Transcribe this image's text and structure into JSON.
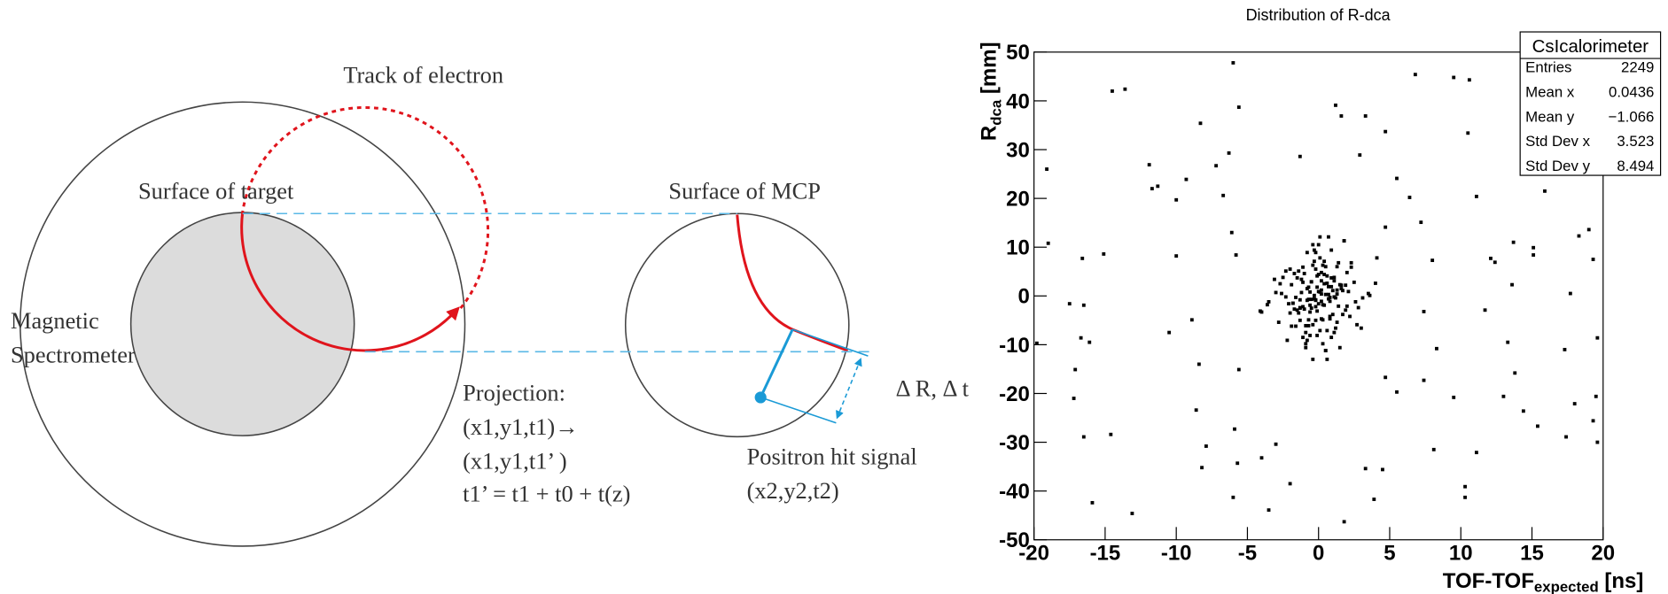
{
  "diagram": {
    "track_label": "Track of electron",
    "target_label": "Surface of target",
    "mcp_label": "Surface of MCP",
    "spectrometer_label": [
      "Magnetic",
      "Spectrometer"
    ],
    "projection_lines": [
      "Projection:",
      "(x1,y1,t1)→",
      "(x1,y1,t1’ )",
      "t1’ = t1 + t0 + t(z)"
    ],
    "delta_label": "Δ R, Δ t",
    "positron_lines": [
      "Positron hit signal",
      "(x2,y2,t2)"
    ]
  },
  "stats_box": {
    "title": "CsIcalorimeter",
    "rows": [
      {
        "label": "Entries",
        "value": "2249"
      },
      {
        "label": "Mean x",
        "value": "0.0436"
      },
      {
        "label": "Mean y",
        "value": "−1.066"
      },
      {
        "label": "Std Dev x",
        "value": "3.523"
      },
      {
        "label": "Std Dev y",
        "value": "8.494"
      }
    ]
  },
  "chart_data": {
    "type": "scatter",
    "title": "Distribution of R-dca",
    "x_label": {
      "text": "TOF-TOF",
      "subscript": "expected",
      "unit": " [ns]"
    },
    "y_label": {
      "text": "R",
      "subscript": "dca",
      "unit": " [mm]"
    },
    "color": "#000000",
    "xlim": [
      -20,
      20
    ],
    "xticks": [
      -20,
      -15,
      -10,
      -5,
      0,
      5,
      10,
      15,
      20
    ],
    "ylim": [
      -50,
      50
    ],
    "yticks": [
      -50,
      -40,
      -30,
      -20,
      -10,
      0,
      10,
      20,
      30,
      40,
      50
    ],
    "grid": false,
    "x": [
      -14.5,
      -13.6,
      -11.9,
      -11.7,
      -11.3,
      -16.6,
      -15.1,
      -16.5,
      -17.5,
      -16.7,
      -16.1,
      -17.1,
      -17.2,
      -16.5,
      -14.6,
      -15.9,
      -13.1,
      -19,
      -19.8,
      -19.1,
      -10.5,
      -10,
      -8.9,
      -8.4,
      -7.9,
      -8.2,
      -8.6,
      -10,
      -9.3,
      -8.3,
      -7.2,
      -6.7,
      -6.3,
      -5.6,
      -6,
      -6.1,
      -5.8,
      -5.6,
      -5.9,
      -5.7,
      -6,
      -4,
      -3,
      -1.3,
      -2,
      1.2,
      1.6,
      3.3,
      2.9,
      4.7,
      5.5,
      6.4,
      7.2,
      4.7,
      4.7,
      5.5,
      4.5,
      3.3,
      3.9,
      1.8,
      7.4,
      7.4,
      6.8,
      8,
      8.3,
      9.5,
      8.1,
      10.3,
      10.3,
      10.5,
      9.5,
      10.6,
      11.1,
      12.4,
      12.1,
      11.7,
      11.1,
      13,
      13.7,
      13.6,
      15.1,
      15.1,
      13.3,
      13.8,
      14.4,
      15.4,
      17.4,
      18,
      17.3,
      17.7,
      18.3,
      19,
      19.3,
      19.6,
      19.5,
      19.6,
      19.3,
      15.9,
      -3.5,
      0.2,
      -0.5,
      1.1,
      -1.3,
      0.8,
      -0.2,
      0.5,
      -0.9,
      1.6,
      -1.8,
      0.1,
      -0.6,
      2.1,
      -2.3,
      0.9,
      -0.1,
      0.4,
      -1.1,
      1.3,
      -0.4,
      0.7,
      -0.8,
      1.9,
      -1.5,
      0.3,
      -0.3,
      2.6,
      -2.7,
      0.0,
      1.0,
      -1.0,
      0.6,
      -0.7,
      1.4,
      -1.4,
      0.2,
      -0.2,
      3.1,
      -3.0,
      0.5,
      -0.5,
      1.2,
      -1.2,
      0.8,
      -0.8,
      2.3,
      -2.0,
      0.1,
      -0.1,
      1.7,
      -1.7,
      0.4,
      -0.4,
      3.5,
      -3.6,
      0.9,
      -0.9,
      1.5,
      -1.6,
      0.3,
      -0.3,
      2.8,
      -2.5,
      0.6,
      -0.6,
      1.1,
      -1.1,
      0.0,
      4.0,
      -4.1,
      1.8,
      -1.9,
      0.7,
      -0.7,
      2.0,
      -2.2,
      0.2,
      -0.2,
      1.3,
      -1.3,
      -0.2,
      0.5,
      -1.1,
      1.3,
      -0.8,
      0.2,
      -0.5,
      0.9,
      -1.6,
      1.8,
      -0.1,
      0.6,
      -2.1,
      2.3,
      -0.9,
      0.1,
      -0.4,
      1.1,
      -1.3,
      0.4,
      -0.7,
      0.8,
      -1.9,
      1.5,
      -0.3,
      0.3,
      -2.6,
      2.7,
      0.0,
      -1.0,
      1.0,
      -0.6,
      0.7,
      -1.4,
      1.4,
      -0.2,
      0.2,
      -3.1,
      3.0,
      -0.5,
      0.5,
      -1.2,
      1.2,
      -0.8,
      0.8,
      -2.3,
      2.0,
      -0.1,
      0.1,
      -1.7,
      1.7,
      -0.4,
      0.4,
      -3.5,
      3.6,
      -0.9,
      0.9,
      -1.5,
      1.6,
      -0.3,
      0.3,
      -2.8,
      2.5,
      -0.6,
      0.6,
      -1.1,
      1.1,
      0.0,
      -4.0,
      4.1,
      -1.8,
      1.9,
      -0.7,
      0.7,
      -2.0,
      2.2,
      -0.2,
      0.2,
      -1.3,
      1.3
    ],
    "y": [
      42,
      42.4,
      26.9,
      22,
      22.5,
      7.7,
      8.6,
      -1.9,
      -1.6,
      -8.6,
      -9.5,
      -15.1,
      -21,
      -28.9,
      -28.4,
      -42.4,
      -44.6,
      10.8,
      -9.7,
      26,
      -7.5,
      8.2,
      -4.9,
      -14,
      -30.8,
      -35.2,
      -23.4,
      19.7,
      23.9,
      35.4,
      26.7,
      20.6,
      29.3,
      38.7,
      47.8,
      13,
      8.4,
      -15.1,
      -27.3,
      -34.3,
      -41.3,
      -33.2,
      -30.4,
      28.6,
      -38.5,
      39.1,
      36.9,
      36.9,
      28.9,
      33.7,
      24.1,
      20.2,
      15.1,
      14.1,
      -16.7,
      -19.7,
      -35.6,
      -35.4,
      -41.7,
      -46.3,
      -3.2,
      -17.3,
      45.4,
      7.3,
      -10.8,
      -20.8,
      -31.5,
      -41.3,
      -39.1,
      33.4,
      44.8,
      44.3,
      20.4,
      6.9,
      7.7,
      -2.9,
      -32.1,
      -20.6,
      11,
      2.3,
      8.4,
      9.9,
      -9.5,
      -15.8,
      -23.6,
      -26.7,
      -28.9,
      -22.1,
      -11,
      0.5,
      12.3,
      13.6,
      7.5,
      -8.6,
      -20.6,
      -30,
      -25.6,
      21.5,
      -43.9,
      1.2,
      -2.5,
      3.1,
      -0.8,
      -4.2,
      5.5,
      0.3,
      -6.1,
      2.2,
      -1.5,
      7.8,
      -3.3,
      0.9,
      -0.2,
      -8.5,
      4.1,
      -1.9,
      2.8,
      -5.4,
      6.3,
      -0.6,
      1.5,
      -2.9,
      3.7,
      -9.8,
      0.1,
      -1.2,
      2.5,
      10.5,
      -3.8,
      4.6,
      -7.1,
      1.8,
      -2.1,
      5.1,
      -4.7,
      8.9,
      -0.4,
      0.7,
      -11.2,
      2.9,
      -6.6,
      3.4,
      -1.1,
      -0.9,
      6.8,
      -3.5,
      12.1,
      -8.1,
      1.1,
      -2.7,
      4.4,
      -5.9,
      0.5,
      -1.8,
      9.4,
      -10.6,
      2.3,
      -0.3,
      -4.9,
      7.1,
      -2.4,
      3.8,
      -13.0,
      0.8,
      -7.5,
      5.9,
      -1.6,
      2.6,
      -3.1,
      11.3,
      -6.2,
      1.9,
      -0.7,
      4.8,
      -9.1,
      0.4,
      -2.2,
      6.0,
      -5.0,
      -5.0,
      6.0,
      -2.2,
      0.4,
      -9.1,
      4.8,
      -0.7,
      1.9,
      -6.2,
      11.3,
      -3.1,
      2.6,
      -1.6,
      5.9,
      -7.5,
      0.8,
      -13.0,
      3.8,
      -2.4,
      7.1,
      -4.9,
      -0.3,
      2.3,
      -10.6,
      9.4,
      -1.8,
      0.5,
      -5.9,
      4.4,
      -2.7,
      1.1,
      -8.1,
      12.1,
      -3.5,
      6.8,
      -0.9,
      -1.1,
      3.4,
      -6.6,
      2.9,
      -11.2,
      0.7,
      -0.4,
      8.9,
      -4.7,
      5.1,
      -2.1,
      1.8,
      -7.1,
      4.6,
      -3.8,
      10.5,
      2.5,
      -1.2,
      0.1,
      -9.8,
      3.7,
      -2.9,
      1.5,
      -0.6,
      6.3,
      -5.4,
      2.8,
      -1.9,
      4.1,
      -8.5,
      -0.2,
      0.9,
      -3.3,
      7.8,
      -1.5,
      2.2,
      -6.1,
      0.3,
      5.5,
      -4.2,
      -0.8,
      3.1,
      -2.5,
      1.2
    ]
  }
}
